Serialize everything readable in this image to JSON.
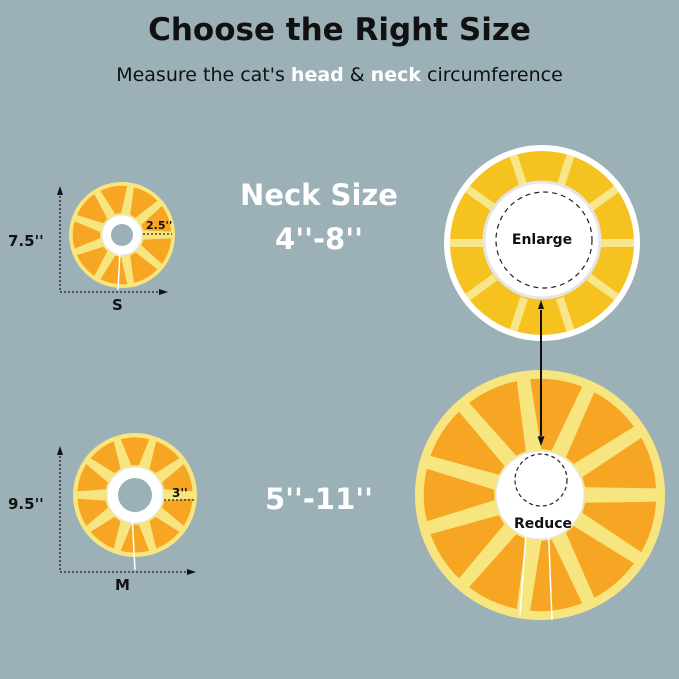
{
  "title": "Choose the Right Size",
  "subtitle": {
    "prefix": "Measure the cat's ",
    "head": "head",
    "amp": " & ",
    "neck": "neck",
    "suffix": " circumference"
  },
  "neck_size_label": "Neck Size",
  "small": {
    "size": "S",
    "height": "7.5''",
    "width": "2.5''",
    "neck_range": "4''-8''"
  },
  "medium": {
    "size": "M",
    "height": "9.5''",
    "width": "3''",
    "neck_range": "5''-11''"
  },
  "enlarge_label": "Enlarge",
  "reduce_label": "Reduce",
  "colors": {
    "background": "#9bb0b7",
    "petal": "#f6a623",
    "base": "#f7e680",
    "ring": "#ffffff"
  }
}
